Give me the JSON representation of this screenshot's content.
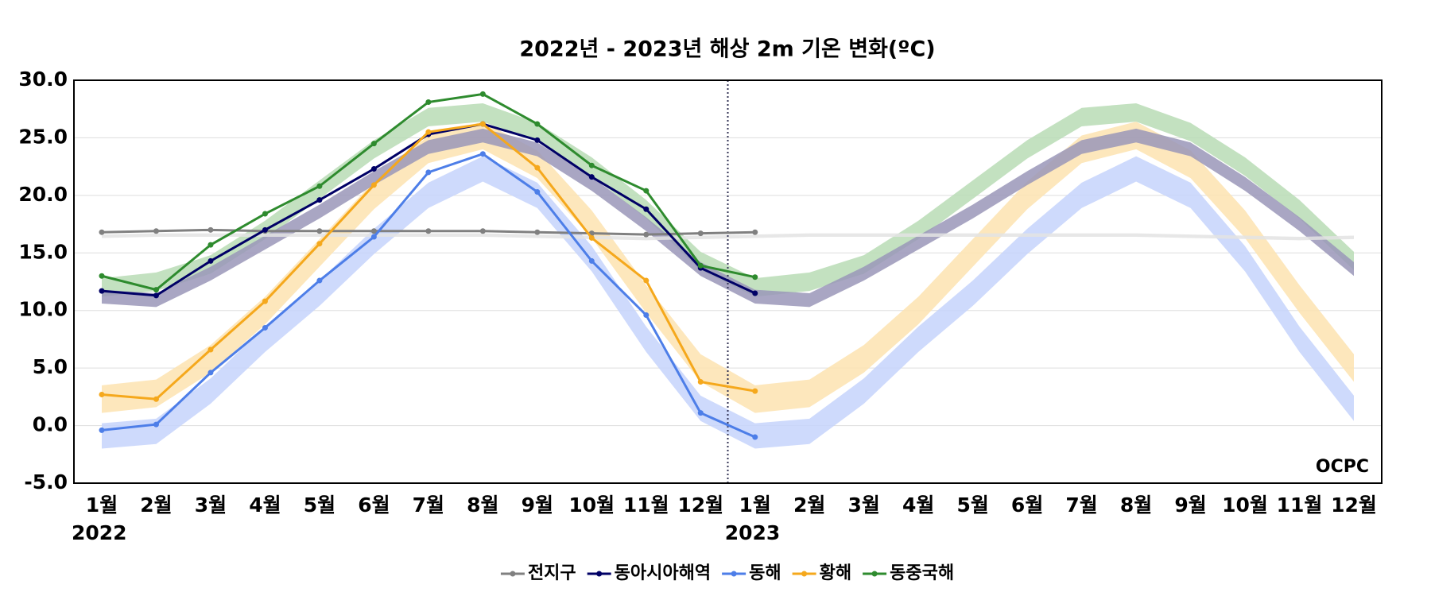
{
  "chart_data": {
    "type": "line",
    "title": "2022년 - 2023년 해상 2m 기온 변화(ºC)",
    "categories": [
      "1월",
      "2월",
      "3월",
      "4월",
      "5월",
      "6월",
      "7월",
      "8월",
      "9월",
      "10월",
      "11월",
      "12월",
      "1월",
      "2월",
      "3월",
      "4월",
      "5월",
      "6월",
      "7월",
      "8월",
      "9월",
      "10월",
      "11월",
      "12월"
    ],
    "years": [
      "2022",
      "2023"
    ],
    "logo": "OCPC",
    "ylim": [
      -5,
      30
    ],
    "yticks": [
      {
        "value": -5,
        "label": "-5.0"
      },
      {
        "value": 0,
        "label": "0.0"
      },
      {
        "value": 5,
        "label": "5.0"
      },
      {
        "value": 10,
        "label": "10.0"
      },
      {
        "value": 15,
        "label": "15.0"
      },
      {
        "value": 20,
        "label": "20.0"
      },
      {
        "value": 25,
        "label": "25.0"
      },
      {
        "value": 30,
        "label": "30.0"
      }
    ],
    "grid": true,
    "bands": [
      {
        "color": "#fde3b0",
        "lower": [
          1.1,
          1.6,
          4.6,
          8.8,
          13.8,
          18.8,
          22.8,
          24.0,
          21.5,
          16.3,
          9.8,
          3.8,
          1.1,
          1.6,
          4.6,
          8.8,
          13.8,
          18.8,
          22.8,
          24.0,
          21.5,
          16.3,
          9.8,
          3.8
        ],
        "upper": [
          3.5,
          4.0,
          7.0,
          11.2,
          16.2,
          21.2,
          25.2,
          26.4,
          23.9,
          18.7,
          12.2,
          6.2,
          3.5,
          4.0,
          7.0,
          11.2,
          16.2,
          21.2,
          25.2,
          26.4,
          23.9,
          18.7,
          12.2,
          6.2
        ]
      },
      {
        "color": "#c5d4fb",
        "lower": [
          -2.0,
          -1.6,
          1.9,
          6.4,
          10.4,
          14.9,
          18.9,
          21.2,
          18.9,
          13.4,
          6.4,
          0.4,
          -2.0,
          -1.6,
          1.9,
          6.4,
          10.4,
          14.9,
          18.9,
          21.2,
          18.9,
          13.4,
          6.4,
          0.4
        ],
        "upper": [
          0.2,
          0.6,
          4.1,
          8.6,
          12.6,
          17.1,
          21.1,
          23.4,
          21.1,
          15.6,
          8.6,
          2.6,
          0.2,
          0.6,
          4.1,
          8.6,
          12.6,
          17.1,
          21.1,
          23.4,
          21.1,
          15.6,
          8.6,
          2.6
        ]
      },
      {
        "color": "#b9dcb5",
        "lower": [
          11.2,
          11.7,
          13.2,
          16.2,
          19.7,
          23.2,
          26.0,
          26.4,
          24.7,
          21.7,
          18.0,
          13.5,
          11.2,
          11.7,
          13.2,
          16.2,
          19.7,
          23.2,
          26.0,
          26.4,
          24.7,
          21.7,
          18.0,
          13.5
        ],
        "upper": [
          12.8,
          13.3,
          14.8,
          17.8,
          21.3,
          24.8,
          27.6,
          28.0,
          26.3,
          23.3,
          19.6,
          15.1,
          12.8,
          13.3,
          14.8,
          17.8,
          21.3,
          24.8,
          27.6,
          28.0,
          26.3,
          23.3,
          19.6,
          15.1
        ]
      },
      {
        "color": "#9a96b8",
        "lower": [
          10.6,
          10.3,
          12.6,
          15.3,
          18.0,
          20.9,
          23.6,
          24.6,
          23.4,
          20.4,
          16.9,
          13.0,
          10.6,
          10.3,
          12.6,
          15.3,
          18.0,
          20.9,
          23.6,
          24.6,
          23.4,
          20.4,
          16.9,
          13.0
        ],
        "upper": [
          11.8,
          11.5,
          13.8,
          16.5,
          19.2,
          22.1,
          24.8,
          25.8,
          24.6,
          21.6,
          18.1,
          14.2,
          11.8,
          11.5,
          13.8,
          16.5,
          19.2,
          22.1,
          24.8,
          25.8,
          24.6,
          21.6,
          18.1,
          14.2
        ]
      },
      {
        "color": "#e3e3e3",
        "lower": [
          16.3,
          16.4,
          16.4,
          16.4,
          16.4,
          16.4,
          16.4,
          16.4,
          16.3,
          16.2,
          16.1,
          16.2,
          16.3,
          16.4,
          16.4,
          16.4,
          16.4,
          16.4,
          16.4,
          16.4,
          16.3,
          16.2,
          16.1,
          16.2
        ],
        "upper": [
          16.6,
          16.7,
          16.7,
          16.7,
          16.7,
          16.7,
          16.7,
          16.7,
          16.6,
          16.5,
          16.4,
          16.5,
          16.6,
          16.7,
          16.7,
          16.7,
          16.7,
          16.7,
          16.7,
          16.7,
          16.6,
          16.5,
          16.4,
          16.5
        ]
      }
    ],
    "series": [
      {
        "name": "전지구",
        "color": "#808080",
        "values": [
          16.8,
          16.9,
          17.0,
          16.9,
          16.9,
          16.9,
          16.9,
          16.9,
          16.8,
          16.7,
          16.6,
          16.7,
          16.8,
          null,
          null,
          null,
          null,
          null,
          null,
          null,
          null,
          null,
          null,
          null
        ]
      },
      {
        "name": "동아시아해역",
        "color": "#000066",
        "values": [
          11.7,
          11.3,
          14.3,
          17.0,
          19.6,
          22.3,
          25.3,
          26.2,
          24.8,
          21.6,
          18.8,
          13.7,
          11.5,
          null,
          null,
          null,
          null,
          null,
          null,
          null,
          null,
          null,
          null,
          null
        ]
      },
      {
        "name": "동해",
        "color": "#4d7ee8",
        "values": [
          -0.4,
          0.1,
          4.6,
          8.5,
          12.6,
          16.4,
          22.0,
          23.6,
          20.3,
          14.3,
          9.6,
          1.1,
          -1.0,
          null,
          null,
          null,
          null,
          null,
          null,
          null,
          null,
          null,
          null,
          null
        ]
      },
      {
        "name": "황해",
        "color": "#f5a81c",
        "values": [
          2.7,
          2.3,
          6.6,
          10.8,
          15.8,
          20.9,
          25.5,
          26.2,
          22.4,
          16.3,
          12.6,
          3.8,
          3.0,
          null,
          null,
          null,
          null,
          null,
          null,
          null,
          null,
          null,
          null,
          null
        ]
      },
      {
        "name": "동중국해",
        "color": "#2e8b2e",
        "values": [
          13.0,
          11.8,
          15.7,
          18.4,
          20.8,
          24.5,
          28.1,
          28.8,
          26.2,
          22.6,
          20.4,
          13.9,
          12.9,
          null,
          null,
          null,
          null,
          null,
          null,
          null,
          null,
          null,
          null,
          null
        ]
      }
    ]
  }
}
